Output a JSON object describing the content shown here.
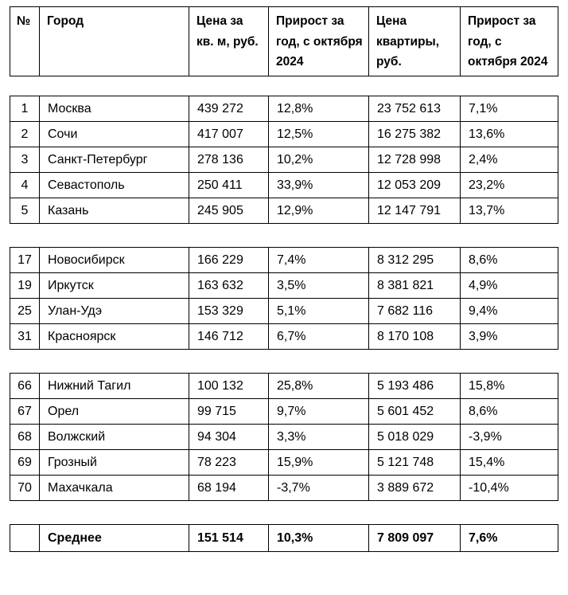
{
  "table": {
    "columns": [
      "№",
      "Город",
      "Цена за кв. м, руб.",
      "Прирост за год, с октября 2024",
      "Цена квартиры, руб.",
      "Прирост за год, с октября 2024"
    ],
    "groups": [
      {
        "rows": [
          {
            "num": "1",
            "city": "Москва",
            "price_sqm": "439 272",
            "growth_sqm": "12,8%",
            "price_flat": "23 752 613",
            "growth_flat": "7,1%"
          },
          {
            "num": "2",
            "city": "Сочи",
            "price_sqm": "417 007",
            "growth_sqm": "12,5%",
            "price_flat": "16 275 382",
            "growth_flat": "13,6%"
          },
          {
            "num": "3",
            "city": "Санкт-Петербург",
            "price_sqm": "278 136",
            "growth_sqm": "10,2%",
            "price_flat": "12 728 998",
            "growth_flat": "2,4%"
          },
          {
            "num": "4",
            "city": "Севастополь",
            "price_sqm": "250 411",
            "growth_sqm": "33,9%",
            "price_flat": "12 053 209",
            "growth_flat": "23,2%"
          },
          {
            "num": "5",
            "city": "Казань",
            "price_sqm": "245 905",
            "growth_sqm": "12,9%",
            "price_flat": "12 147 791",
            "growth_flat": "13,7%"
          }
        ]
      },
      {
        "rows": [
          {
            "num": "17",
            "city": "Новосибирск",
            "price_sqm": "166 229",
            "growth_sqm": "7,4%",
            "price_flat": "8 312 295",
            "growth_flat": "8,6%"
          },
          {
            "num": "19",
            "city": "Иркутск",
            "price_sqm": "163 632",
            "growth_sqm": "3,5%",
            "price_flat": "8 381 821",
            "growth_flat": "4,9%"
          },
          {
            "num": "25",
            "city": "Улан-Удэ",
            "price_sqm": "153 329",
            "growth_sqm": "5,1%",
            "price_flat": "7 682 116",
            "growth_flat": "9,4%"
          },
          {
            "num": "31",
            "city": "Красноярск",
            "price_sqm": "146 712",
            "growth_sqm": "6,7%",
            "price_flat": "8 170 108",
            "growth_flat": "3,9%"
          }
        ]
      },
      {
        "rows": [
          {
            "num": "66",
            "city": "Нижний Тагил",
            "price_sqm": "100 132",
            "growth_sqm": "25,8%",
            "price_flat": "5 193 486",
            "growth_flat": "15,8%"
          },
          {
            "num": "67",
            "city": "Орел",
            "price_sqm": "99 715",
            "growth_sqm": "9,7%",
            "price_flat": "5 601 452",
            "growth_flat": "8,6%"
          },
          {
            "num": "68",
            "city": "Волжский",
            "price_sqm": "94 304",
            "growth_sqm": "3,3%",
            "price_flat": "5 018 029",
            "growth_flat": "-3,9%"
          },
          {
            "num": "69",
            "city": "Грозный",
            "price_sqm": "78 223",
            "growth_sqm": "15,9%",
            "price_flat": "5 121 748",
            "growth_flat": "15,4%"
          },
          {
            "num": "70",
            "city": "Махачкала",
            "price_sqm": "68 194",
            "growth_sqm": "-3,7%",
            "price_flat": "3 889 672",
            "growth_flat": "-10,4%"
          }
        ]
      }
    ],
    "summary": {
      "num": "",
      "city": "Среднее",
      "price_sqm": "151 514",
      "growth_sqm": "10,3%",
      "price_flat": "7 809 097",
      "growth_flat": "7,6%"
    }
  },
  "colors": {
    "border": "#000000",
    "text": "#000000",
    "background": "#ffffff"
  }
}
